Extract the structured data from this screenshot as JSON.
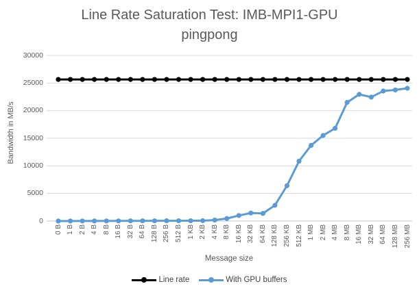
{
  "chart": {
    "title_line1": "Line Rate Saturation Test: IMB-MPI1-GPU",
    "title_line2": "pingpong",
    "ylabel": "Bandwidth in MB/s",
    "xlabel": "Message size"
  },
  "colors": {
    "text": "#595959",
    "gridline": "#D9D9D9",
    "axis_line": "#C9C9C9"
  },
  "chart_data": {
    "type": "line",
    "title": "Line Rate Saturation Test: IMB-MPI1-GPU pingpong",
    "xlabel": "Message size",
    "ylabel": "Bandwidth in MB/s",
    "ylim": [
      0,
      30000
    ],
    "ytick_step": 5000,
    "yticks": [
      0,
      5000,
      10000,
      15000,
      20000,
      25000,
      30000
    ],
    "grid": true,
    "legend_position": "bottom",
    "categories": [
      "0 B",
      "1 B",
      "2 B",
      "4 B",
      "8 B",
      "16 B",
      "32 B",
      "64 B",
      "128 B",
      "256 B",
      "512 B",
      "1 KB",
      "2 KB",
      "4 KB",
      "8 KB",
      "16 KB",
      "32 KB",
      "64 KB",
      "128 KB",
      "256 KB",
      "512 KB",
      "1 MB",
      "2 MB",
      "4 MB",
      "8 MB",
      "16 MB",
      "32 MB",
      "64 MB",
      "128 MB",
      "256 MB"
    ],
    "series": [
      {
        "name": "Line rate",
        "color": "#000000",
        "values": [
          25650,
          25650,
          25650,
          25650,
          25650,
          25650,
          25650,
          25650,
          25650,
          25650,
          25650,
          25650,
          25650,
          25650,
          25650,
          25650,
          25650,
          25650,
          25650,
          25650,
          25650,
          25650,
          25650,
          25650,
          25650,
          25650,
          25650,
          25650,
          25650,
          25650
        ]
      },
      {
        "name": "With GPU buffers",
        "color": "#5B9BD5",
        "values": [
          3,
          5,
          8,
          12,
          18,
          25,
          30,
          35,
          40,
          45,
          50,
          55,
          60,
          180,
          450,
          1000,
          1450,
          1380,
          2850,
          6400,
          10850,
          13700,
          15500,
          16800,
          21500,
          22950,
          22450,
          23550,
          23750,
          24050
        ]
      }
    ]
  }
}
